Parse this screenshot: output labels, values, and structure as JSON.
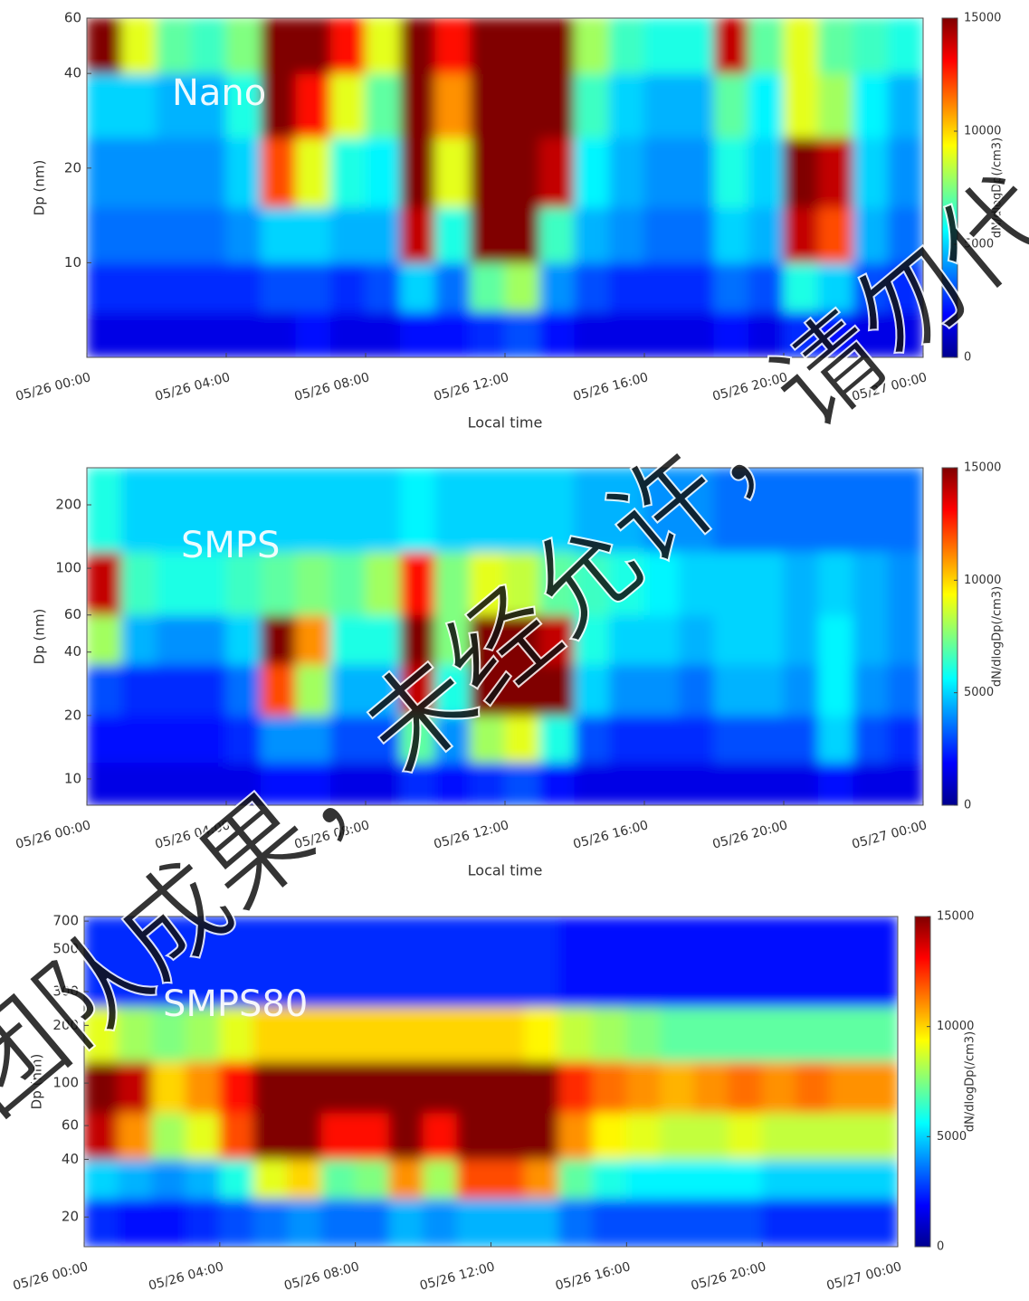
{
  "chart_data": [
    {
      "type": "heatmap",
      "label": "Nano",
      "xlabel": "Local time",
      "ylabel": "Dp (nm)",
      "colorbar_label": "dN/dlogDp(/cm3)",
      "colormap": "jet",
      "yscale": "log",
      "clim": [
        0,
        15000
      ],
      "cticks": [
        0,
        5000,
        10000,
        15000
      ],
      "xlim": [
        0,
        24
      ],
      "xticks": [
        {
          "value": 0,
          "label": "05/26 00:00"
        },
        {
          "value": 4,
          "label": "05/26 04:00"
        },
        {
          "value": 8,
          "label": "05/26 08:00"
        },
        {
          "value": 12,
          "label": "05/26 12:00"
        },
        {
          "value": 16,
          "label": "05/26 16:00"
        },
        {
          "value": 20,
          "label": "05/26 20:00"
        },
        {
          "value": 24,
          "label": "05/27 00:00"
        }
      ],
      "ylim": [
        5,
        60
      ],
      "yticks": [
        10,
        20,
        40,
        60
      ],
      "xbins": [
        0,
        1,
        2,
        3,
        4,
        5,
        6,
        7,
        8,
        9,
        10,
        11,
        12,
        13,
        14,
        15,
        16,
        17,
        18,
        19,
        20,
        21,
        22,
        23,
        24
      ],
      "ybins": [
        5,
        7,
        10,
        15,
        25,
        40,
        60
      ],
      "z": [
        [
          1500,
          1500,
          1500,
          1500,
          1500,
          1500,
          2000,
          1500,
          1500,
          2000,
          2000,
          2500,
          3000,
          2000,
          1500,
          1500,
          1500,
          1500,
          2000,
          1500,
          2500,
          2000,
          1500,
          1500
        ],
        [
          2500,
          2500,
          2500,
          2500,
          2500,
          3000,
          3000,
          2500,
          3000,
          5000,
          3500,
          7000,
          8000,
          4000,
          3000,
          2500,
          2500,
          2500,
          3500,
          3000,
          6000,
          5000,
          3000,
          2500
        ],
        [
          3500,
          3500,
          3500,
          3500,
          4000,
          5000,
          5000,
          4500,
          4500,
          14000,
          6000,
          15000,
          15000,
          6500,
          4500,
          4000,
          3500,
          3500,
          5000,
          4500,
          14000,
          12000,
          4500,
          3500
        ],
        [
          4000,
          4000,
          4000,
          4000,
          5000,
          12000,
          9000,
          6000,
          5500,
          15000,
          9000,
          15000,
          15000,
          14000,
          5500,
          4500,
          4000,
          4000,
          6000,
          5000,
          15000,
          14000,
          5000,
          4000
        ],
        [
          5000,
          5000,
          4500,
          4500,
          6000,
          15000,
          13000,
          9000,
          7000,
          15000,
          11000,
          15000,
          15000,
          15000,
          6500,
          5000,
          4500,
          4500,
          7000,
          5500,
          9000,
          8000,
          5500,
          4500
        ],
        [
          15000,
          9000,
          7000,
          6500,
          7500,
          15000,
          15000,
          13000,
          9000,
          15000,
          13000,
          15000,
          15000,
          15000,
          8000,
          6500,
          6000,
          6000,
          14000,
          7000,
          9000,
          7000,
          6500,
          6000
        ]
      ]
    },
    {
      "type": "heatmap",
      "label": "SMPS",
      "xlabel": "Local time",
      "ylabel": "Dp (nm)",
      "colorbar_label": "dN/dlogDp(/cm3)",
      "colormap": "jet",
      "yscale": "log",
      "clim": [
        0,
        15000
      ],
      "cticks": [
        0,
        5000,
        10000,
        15000
      ],
      "xlim": [
        0,
        24
      ],
      "xticks": [
        {
          "value": 0,
          "label": "05/26 00:00"
        },
        {
          "value": 4,
          "label": "05/26 04:00"
        },
        {
          "value": 8,
          "label": "05/26 08:00"
        },
        {
          "value": 12,
          "label": "05/26 12:00"
        },
        {
          "value": 16,
          "label": "05/26 16:00"
        },
        {
          "value": 20,
          "label": "05/26 20:00"
        },
        {
          "value": 24,
          "label": "05/27 00:00"
        }
      ],
      "ylim": [
        7.5,
        300
      ],
      "yticks": [
        10,
        20,
        40,
        60,
        100,
        200
      ],
      "xbins": [
        0,
        1,
        2,
        3,
        4,
        5,
        6,
        7,
        8,
        9,
        10,
        11,
        12,
        13,
        14,
        15,
        16,
        17,
        18,
        19,
        20,
        21,
        22,
        23,
        24
      ],
      "ybins": [
        7.5,
        12,
        20,
        35,
        60,
        120,
        300
      ],
      "z": [
        [
          1500,
          1500,
          1500,
          1500,
          1500,
          2000,
          2000,
          1500,
          1500,
          2500,
          2000,
          2500,
          3000,
          2000,
          1500,
          1500,
          1500,
          1500,
          1500,
          1500,
          1500,
          2000,
          1500,
          1500
        ],
        [
          2000,
          2000,
          2000,
          2000,
          2500,
          4000,
          4000,
          3000,
          3000,
          7000,
          4000,
          8000,
          9000,
          6000,
          3000,
          2500,
          2500,
          2500,
          3000,
          3000,
          3000,
          5000,
          3000,
          2500
        ],
        [
          3000,
          2500,
          2500,
          2500,
          3500,
          12000,
          8000,
          4500,
          4500,
          14000,
          6000,
          15000,
          15000,
          15000,
          5000,
          4000,
          4000,
          3500,
          4500,
          4500,
          4000,
          5500,
          4000,
          3500
        ],
        [
          8000,
          4500,
          4000,
          4000,
          5000,
          15000,
          11000,
          6000,
          6000,
          15000,
          7500,
          15000,
          15000,
          14000,
          6000,
          5000,
          5000,
          4500,
          5000,
          5000,
          4500,
          5500,
          4500,
          4000
        ],
        [
          14000,
          6500,
          6000,
          6000,
          6500,
          7000,
          7500,
          7000,
          8000,
          13000,
          7500,
          9000,
          8500,
          7000,
          6500,
          6000,
          5500,
          5000,
          5000,
          5000,
          4500,
          5000,
          4500,
          4000
        ],
        [
          6000,
          5000,
          5000,
          5000,
          5000,
          5000,
          5000,
          5000,
          5000,
          5500,
          5000,
          5000,
          5000,
          5000,
          4500,
          4500,
          4000,
          4000,
          3500,
          3500,
          3500,
          3500,
          3500,
          3500
        ]
      ]
    },
    {
      "type": "heatmap",
      "label": "SMPS80",
      "ylabel": "Dp (nm)",
      "colorbar_label": "dN/dlogDp(/cm3)",
      "colormap": "jet",
      "yscale": "log",
      "clim": [
        0,
        15000
      ],
      "cticks": [
        0,
        5000,
        10000,
        15000
      ],
      "xlim": [
        0,
        24
      ],
      "xticks": [
        {
          "value": 0,
          "label": "05/26 00:00"
        },
        {
          "value": 4,
          "label": "05/26 04:00"
        },
        {
          "value": 8,
          "label": "05/26 08:00"
        },
        {
          "value": 12,
          "label": "05/26 12:00"
        },
        {
          "value": 16,
          "label": "05/26 16:00"
        },
        {
          "value": 20,
          "label": "05/26 20:00"
        },
        {
          "value": 24,
          "label": "05/27 00:00"
        }
      ],
      "ylim": [
        14,
        740
      ],
      "yticks": [
        20,
        40,
        60,
        100,
        200,
        300,
        500,
        700
      ],
      "xbins": [
        0,
        1,
        2,
        3,
        4,
        5,
        6,
        7,
        8,
        9,
        10,
        11,
        12,
        13,
        14,
        15,
        16,
        17,
        18,
        19,
        20,
        21,
        22,
        23,
        24
      ],
      "ybins": [
        14,
        25,
        40,
        70,
        130,
        250,
        740
      ],
      "z": [
        [
          2500,
          2000,
          2000,
          2500,
          3000,
          3500,
          4000,
          3500,
          3500,
          4500,
          4000,
          4500,
          4500,
          4500,
          3500,
          3000,
          3000,
          3000,
          3000,
          3000,
          2500,
          2500,
          2500,
          2500
        ],
        [
          5000,
          4500,
          4000,
          4500,
          6000,
          9000,
          10000,
          7000,
          7500,
          11000,
          8000,
          12000,
          12000,
          11000,
          7000,
          6000,
          5500,
          5500,
          5500,
          5500,
          5000,
          5000,
          5000,
          5000
        ],
        [
          14000,
          11000,
          8000,
          9000,
          12000,
          15000,
          15000,
          13000,
          13000,
          15000,
          13000,
          15000,
          15000,
          15000,
          11000,
          9500,
          9000,
          8500,
          8500,
          9000,
          8500,
          8500,
          8500,
          8500
        ],
        [
          15000,
          14000,
          10000,
          11000,
          13000,
          15000,
          15000,
          15000,
          15000,
          15000,
          15000,
          15000,
          15000,
          15000,
          12500,
          11500,
          11000,
          10500,
          11000,
          11500,
          11000,
          11500,
          11000,
          11000
        ],
        [
          9000,
          8000,
          7500,
          8000,
          9000,
          10000,
          10000,
          10000,
          10000,
          10000,
          10000,
          10000,
          10000,
          9500,
          8500,
          8000,
          7500,
          7000,
          7000,
          7000,
          7000,
          7000,
          7000,
          7000
        ],
        [
          2500,
          2500,
          2500,
          2500,
          2500,
          2500,
          2500,
          2500,
          2500,
          2500,
          2500,
          2500,
          2500,
          2500,
          2000,
          2000,
          2000,
          2000,
          2000,
          2000,
          2000,
          2000,
          2000,
          2000
        ]
      ]
    }
  ],
  "watermark": "团队成果，未经允许，请勿代"
}
